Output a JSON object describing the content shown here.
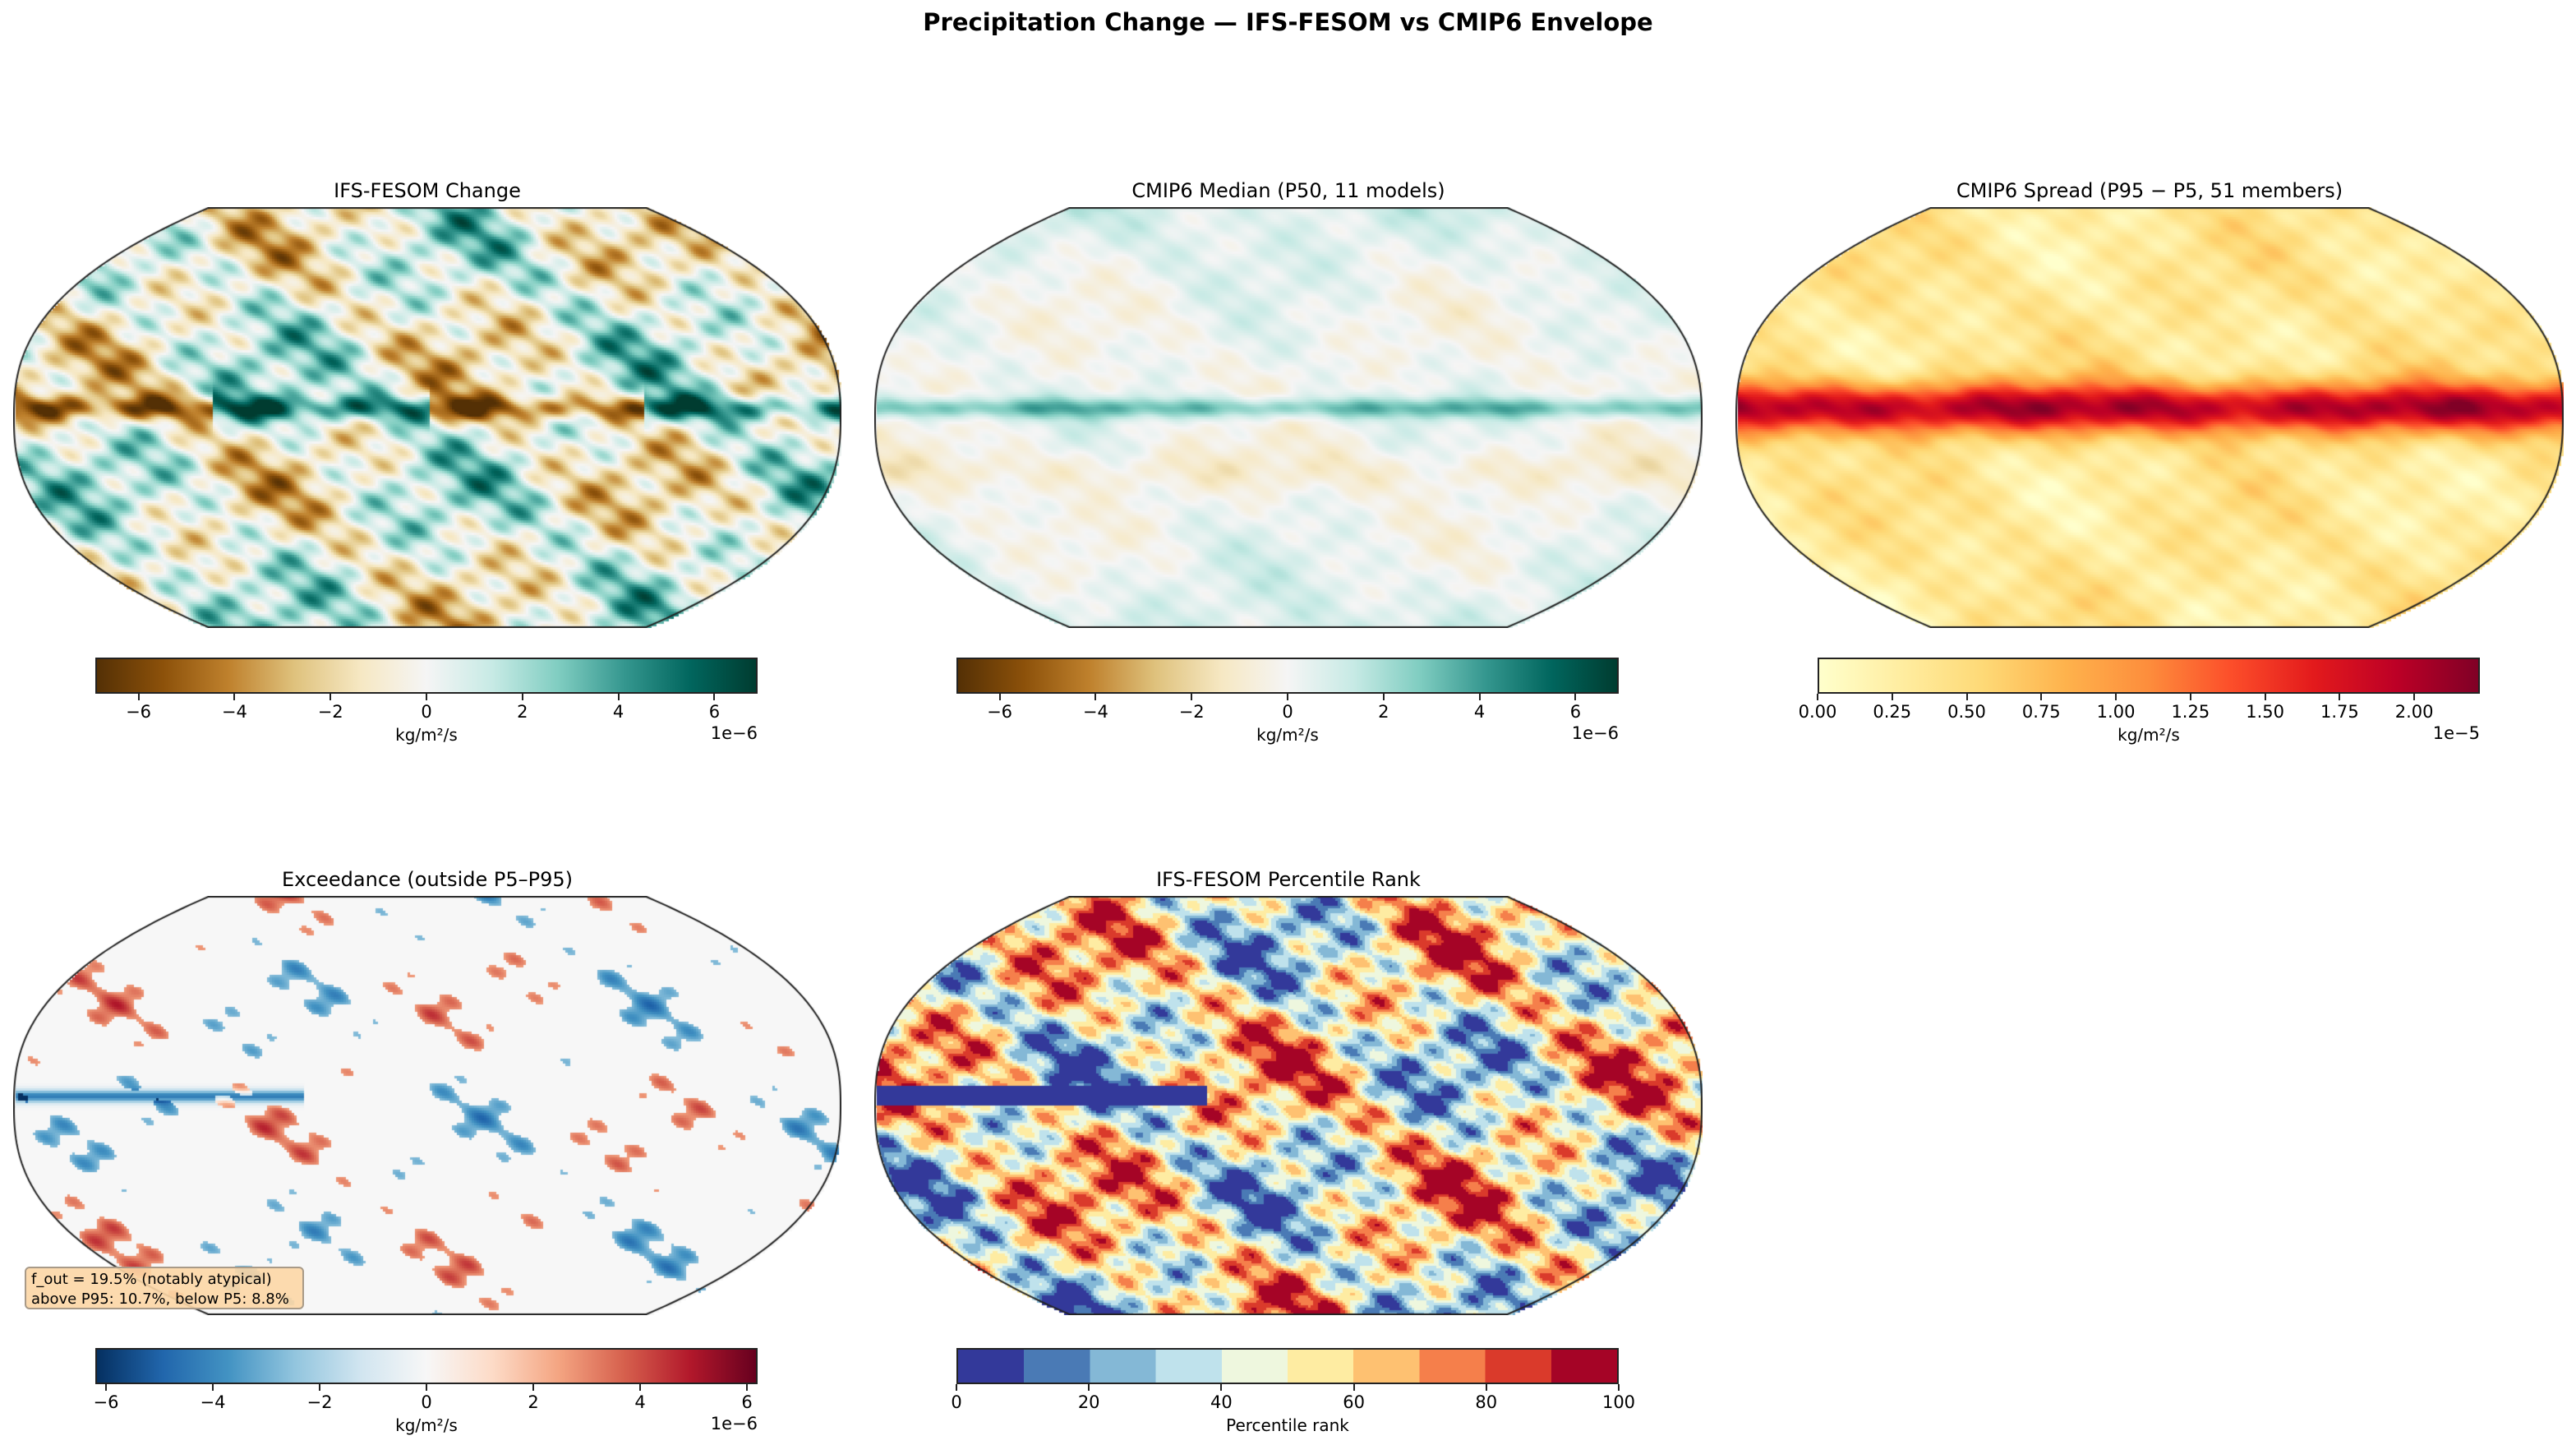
{
  "title": "Precipitation Change — IFS-FESOM vs CMIP6 Envelope",
  "chart_data": [
    {
      "type": "heatmap",
      "title": "IFS-FESOM Change",
      "projection": "Robinson",
      "colormap": "BrBG",
      "colorbar": {
        "label": "kg/m²/s",
        "exponent": "1e−6",
        "range": [
          -6.9,
          6.9
        ],
        "ticks": [
          -6,
          -4,
          -2,
          0,
          2,
          4,
          6
        ],
        "tick_labels": [
          "−6",
          "−4",
          "−2",
          "0",
          "2",
          "4",
          "6"
        ]
      }
    },
    {
      "type": "heatmap",
      "title": "CMIP6 Median (P50, 11 models)",
      "projection": "Robinson",
      "colormap": "BrBG",
      "colorbar": {
        "label": "kg/m²/s",
        "exponent": "1e−6",
        "range": [
          -6.9,
          6.9
        ],
        "ticks": [
          -6,
          -4,
          -2,
          0,
          2,
          4,
          6
        ],
        "tick_labels": [
          "−6",
          "−4",
          "−2",
          "0",
          "2",
          "4",
          "6"
        ]
      }
    },
    {
      "type": "heatmap",
      "title": "CMIP6 Spread (P95 − P5, 51 members)",
      "projection": "Robinson",
      "colormap": "YlOrRd",
      "colorbar": {
        "label": "kg/m²/s",
        "exponent": "1e−5",
        "range": [
          0,
          2.22
        ],
        "ticks": [
          0,
          0.25,
          0.5,
          0.75,
          1,
          1.25,
          1.5,
          1.75,
          2
        ],
        "tick_labels": [
          "0.00",
          "0.25",
          "0.50",
          "0.75",
          "1.00",
          "1.25",
          "1.50",
          "1.75",
          "2.00"
        ]
      }
    },
    {
      "type": "heatmap",
      "title": "Exceedance (outside P5–P95)",
      "projection": "Robinson",
      "colormap": "RdBu_r",
      "colorbar": {
        "label": "kg/m²/s",
        "exponent": "1e−6",
        "range": [
          -6.2,
          6.2
        ],
        "ticks": [
          -6,
          -4,
          -2,
          0,
          2,
          4,
          6
        ],
        "tick_labels": [
          "−6",
          "−4",
          "−2",
          "0",
          "2",
          "4",
          "6"
        ]
      },
      "annotation": {
        "line1": "f_out = 19.5% (notably atypical)",
        "line2": "above P95: 10.7%, below P5: 8.8%"
      }
    },
    {
      "type": "heatmap",
      "title": "IFS-FESOM Percentile Rank",
      "projection": "Robinson",
      "colormap": "RdYlBu_r (10 bins)",
      "colorbar": {
        "label": "Percentile rank",
        "exponent": "",
        "range": [
          0,
          100
        ],
        "ticks": [
          0,
          20,
          40,
          60,
          80,
          100
        ],
        "tick_labels": [
          "0",
          "20",
          "40",
          "60",
          "80",
          "100"
        ],
        "bins": [
          "#33399a",
          "#4a7ab5",
          "#84b8d6",
          "#bfe2ec",
          "#eef7de",
          "#feeca2",
          "#fec171",
          "#f57f4b",
          "#da3a2b",
          "#a50426"
        ]
      }
    }
  ],
  "colormaps": {
    "BrBG": [
      "#543005",
      "#8c510a",
      "#bf812d",
      "#dfc27d",
      "#f6e8c3",
      "#f5f5f5",
      "#c7eae5",
      "#80cdc1",
      "#35978f",
      "#01665e",
      "#003c30"
    ],
    "YlOrRd": [
      "#ffffcc",
      "#ffeda0",
      "#fed976",
      "#feb24c",
      "#fd8d3c",
      "#fc4e2a",
      "#e31a1c",
      "#bd0026",
      "#800026"
    ],
    "RdBu_r": [
      "#053061",
      "#2166ac",
      "#4393c3",
      "#92c5de",
      "#d1e5f0",
      "#f7f7f7",
      "#fddbc7",
      "#f4a582",
      "#d6604d",
      "#b2182b",
      "#67001f"
    ]
  }
}
